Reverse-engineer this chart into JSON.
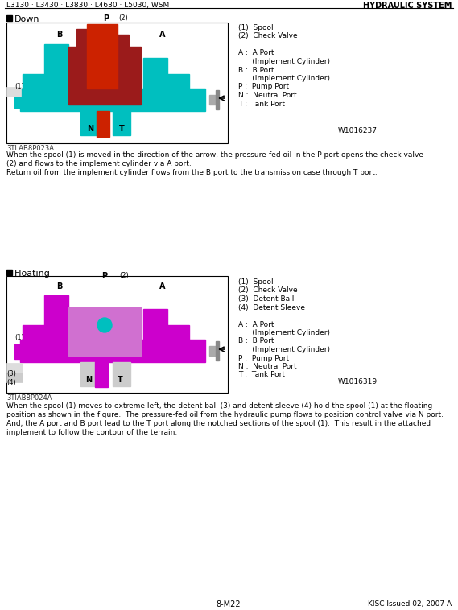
{
  "header_left": "L3130 · L3430 · L3830 · L4630 · L5030, WSM",
  "header_right": "HYDRAULIC SYSTEM",
  "footer_center": "8-M22",
  "footer_right": "KISC Issued 02, 2007 A",
  "section1_title": "Down",
  "section2_title": "Floating",
  "legend1": [
    "(1)  Spool",
    "(2)  Check Valve",
    "",
    "A :  A Port",
    "      (Implement Cylinder)",
    "B :  B Port",
    "      (Implement Cylinder)",
    "P :  Pump Port",
    "N :  Neutral Port",
    "T :  Tank Port"
  ],
  "legend1_watermark": "W1016237",
  "legend2": [
    "(1)  Spool",
    "(2)  Check Valve",
    "(3)  Detent Ball",
    "(4)  Detent Sleeve",
    "",
    "A :  A Port",
    "      (Implement Cylinder)",
    "B :  B Port",
    "      (Implement Cylinder)",
    "P :  Pump Port",
    "N :  Neutral Port",
    "T :  Tank Port"
  ],
  "legend2_watermark": "W1016319",
  "fig1_caption": "3TLAB8P023A",
  "fig2_caption": "3TIAB8P024A",
  "text1": "When the spool (1) is moved in the direction of the arrow, the pressure-fed oil in the P port opens the check valve\n(2) and flows to the implement cylinder via A port.\nReturn oil from the implement cylinder flows from the B port to the transmission case through T port.",
  "text2": "When the spool (1) moves to extreme left, the detent ball (3) and detent sleeve (4) hold the spool (1) at the floating\nposition as shown in the figure.  The pressure-fed oil from the hydraulic pump flows to position control valve via N port.\nAnd, the A port and B port lead to the T port along the notched sections of the spool (1).  This result in the attached\nimplement to follow the contour of the terrain.",
  "cyan_color": "#00BFBF",
  "magenta_color": "#CC00CC",
  "dark_red_color": "#8B0000",
  "red_color": "#CC2200",
  "bg_color": "#FFFFFF",
  "border_color": "#000000"
}
